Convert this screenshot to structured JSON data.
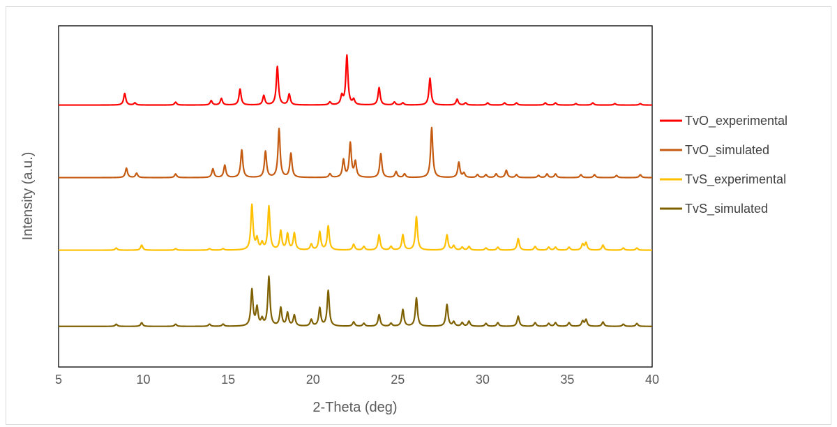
{
  "chart_data": {
    "type": "line",
    "xlabel": "2-Theta (deg)",
    "ylabel": "Intensity (a.u.)",
    "xlim": [
      5,
      40
    ],
    "xticks": [
      "5",
      "10",
      "15",
      "20",
      "25",
      "30",
      "35",
      "40"
    ],
    "y_ticks_shown": false,
    "grid": false,
    "legend_position": "right",
    "series": [
      {
        "name": "TvO_experimental",
        "color": "#ff0000",
        "baseline": 3.85,
        "peaks": [
          [
            8.9,
            0.16
          ],
          [
            9.5,
            0.03
          ],
          [
            11.9,
            0.04
          ],
          [
            14.0,
            0.06
          ],
          [
            14.6,
            0.09
          ],
          [
            15.7,
            0.22
          ],
          [
            17.1,
            0.13
          ],
          [
            17.9,
            0.53
          ],
          [
            18.6,
            0.15
          ],
          [
            21.0,
            0.04
          ],
          [
            21.7,
            0.12
          ],
          [
            22.0,
            0.68
          ],
          [
            22.4,
            0.07
          ],
          [
            23.9,
            0.24
          ],
          [
            24.8,
            0.04
          ],
          [
            25.3,
            0.03
          ],
          [
            26.9,
            0.37
          ],
          [
            28.5,
            0.08
          ],
          [
            29.0,
            0.03
          ],
          [
            30.3,
            0.03
          ],
          [
            31.3,
            0.03
          ],
          [
            32.0,
            0.03
          ],
          [
            33.7,
            0.03
          ],
          [
            34.3,
            0.03
          ],
          [
            35.5,
            0.02
          ],
          [
            36.5,
            0.03
          ],
          [
            37.8,
            0.02
          ],
          [
            39.3,
            0.02
          ]
        ]
      },
      {
        "name": "TvO_simulated",
        "color": "#c55a11",
        "baseline": 2.85,
        "peaks": [
          [
            9.0,
            0.13
          ],
          [
            9.6,
            0.06
          ],
          [
            11.9,
            0.05
          ],
          [
            14.1,
            0.12
          ],
          [
            14.8,
            0.17
          ],
          [
            15.8,
            0.38
          ],
          [
            17.2,
            0.36
          ],
          [
            18.0,
            0.67
          ],
          [
            18.7,
            0.33
          ],
          [
            21.0,
            0.05
          ],
          [
            21.8,
            0.24
          ],
          [
            22.2,
            0.47
          ],
          [
            22.5,
            0.21
          ],
          [
            24.0,
            0.33
          ],
          [
            24.9,
            0.08
          ],
          [
            25.4,
            0.05
          ],
          [
            27.0,
            0.69
          ],
          [
            28.6,
            0.21
          ],
          [
            28.9,
            0.06
          ],
          [
            29.7,
            0.04
          ],
          [
            30.2,
            0.04
          ],
          [
            30.8,
            0.05
          ],
          [
            31.4,
            0.1
          ],
          [
            32.0,
            0.04
          ],
          [
            33.3,
            0.03
          ],
          [
            33.8,
            0.05
          ],
          [
            34.3,
            0.05
          ],
          [
            35.8,
            0.04
          ],
          [
            36.6,
            0.04
          ],
          [
            37.9,
            0.03
          ],
          [
            39.3,
            0.04
          ]
        ]
      },
      {
        "name": "TvS_experimental",
        "color": "#ffc000",
        "baseline": 1.85,
        "peaks": [
          [
            8.4,
            0.03
          ],
          [
            9.9,
            0.07
          ],
          [
            11.9,
            0.02
          ],
          [
            13.9,
            0.02
          ],
          [
            14.7,
            0.02
          ],
          [
            16.4,
            0.62
          ],
          [
            16.7,
            0.15
          ],
          [
            17.0,
            0.09
          ],
          [
            17.4,
            0.6
          ],
          [
            18.1,
            0.26
          ],
          [
            18.5,
            0.22
          ],
          [
            18.9,
            0.23
          ],
          [
            19.9,
            0.08
          ],
          [
            20.4,
            0.25
          ],
          [
            20.9,
            0.33
          ],
          [
            22.4,
            0.08
          ],
          [
            23.0,
            0.05
          ],
          [
            23.9,
            0.21
          ],
          [
            24.6,
            0.05
          ],
          [
            25.3,
            0.21
          ],
          [
            26.1,
            0.46
          ],
          [
            27.9,
            0.21
          ],
          [
            28.3,
            0.06
          ],
          [
            28.8,
            0.04
          ],
          [
            29.2,
            0.05
          ],
          [
            30.2,
            0.03
          ],
          [
            30.9,
            0.04
          ],
          [
            32.1,
            0.16
          ],
          [
            33.1,
            0.05
          ],
          [
            33.9,
            0.04
          ],
          [
            34.3,
            0.04
          ],
          [
            35.1,
            0.04
          ],
          [
            35.9,
            0.08
          ],
          [
            36.1,
            0.1
          ],
          [
            37.1,
            0.07
          ],
          [
            38.3,
            0.03
          ],
          [
            39.1,
            0.03
          ]
        ]
      },
      {
        "name": "TvS_simulated",
        "color": "#7f6000",
        "baseline": 0.8,
        "peaks": [
          [
            8.4,
            0.03
          ],
          [
            9.9,
            0.05
          ],
          [
            11.9,
            0.03
          ],
          [
            13.9,
            0.03
          ],
          [
            14.7,
            0.03
          ],
          [
            16.4,
            0.5
          ],
          [
            16.7,
            0.25
          ],
          [
            17.0,
            0.09
          ],
          [
            17.4,
            0.68
          ],
          [
            18.1,
            0.25
          ],
          [
            18.5,
            0.18
          ],
          [
            18.9,
            0.15
          ],
          [
            19.9,
            0.09
          ],
          [
            20.4,
            0.25
          ],
          [
            20.9,
            0.49
          ],
          [
            22.4,
            0.06
          ],
          [
            23.0,
            0.04
          ],
          [
            23.9,
            0.16
          ],
          [
            24.6,
            0.04
          ],
          [
            25.3,
            0.23
          ],
          [
            26.1,
            0.39
          ],
          [
            27.9,
            0.3
          ],
          [
            28.3,
            0.06
          ],
          [
            28.8,
            0.05
          ],
          [
            29.2,
            0.07
          ],
          [
            30.2,
            0.04
          ],
          [
            30.9,
            0.05
          ],
          [
            32.1,
            0.14
          ],
          [
            33.1,
            0.05
          ],
          [
            33.9,
            0.04
          ],
          [
            34.3,
            0.05
          ],
          [
            35.1,
            0.05
          ],
          [
            35.9,
            0.07
          ],
          [
            36.1,
            0.09
          ],
          [
            37.1,
            0.06
          ],
          [
            38.3,
            0.03
          ],
          [
            39.1,
            0.04
          ]
        ]
      }
    ]
  }
}
